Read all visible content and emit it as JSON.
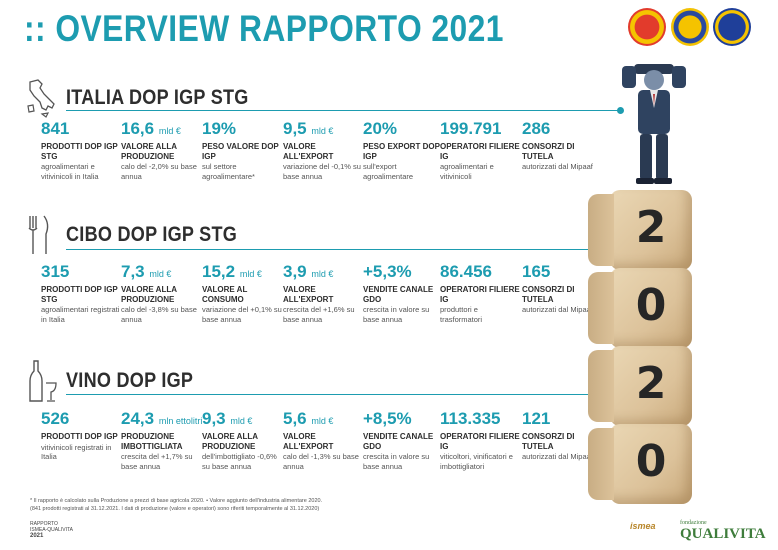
{
  "title": ":: OVERVIEW RAPPORTO 2021",
  "sections": [
    {
      "title": "ITALIA DOP IGP STG",
      "icon": "italy-map-icon",
      "stats": [
        {
          "value": "841",
          "unit": "",
          "label": "PRODOTTI DOP IGP STG",
          "desc": "agroalimentari e vitivinicoli in Italia"
        },
        {
          "value": "16,6",
          "unit": "mld €",
          "label": "VALORE ALLA PRODUZIONE",
          "desc": "calo del -2,0% su base annua"
        },
        {
          "value": "19%",
          "unit": "",
          "label": "PESO VALORE DOP IGP",
          "desc": "sul settore agroalimentare*"
        },
        {
          "value": "9,5",
          "unit": "mld €",
          "label": "VALORE ALL'EXPORT",
          "desc": "variazione del -0,1% su base annua"
        },
        {
          "value": "20%",
          "unit": "",
          "label": "PESO EXPORT DOP IGP",
          "desc": "sull'export agroalimentare"
        },
        {
          "value": "199.791",
          "unit": "",
          "label": "OPERATORI FILIERE IG",
          "desc": "agroalimentari e vitivinicoli"
        },
        {
          "value": "286",
          "unit": "",
          "label": "CONSORZI DI TUTELA",
          "desc": "autorizzati dal Mipaaf"
        }
      ]
    },
    {
      "title": "CIBO DOP IGP STG",
      "icon": "cutlery-icon",
      "stats": [
        {
          "value": "315",
          "unit": "",
          "label": "PRODOTTI DOP IGP STG",
          "desc": "agroalimentari registrati in Italia"
        },
        {
          "value": "7,3",
          "unit": "mld €",
          "label": "VALORE ALLA PRODUZIONE",
          "desc": "calo del -3,8% su base annua"
        },
        {
          "value": "15,2",
          "unit": "mld €",
          "label": "VALORE AL CONSUMO",
          "desc": "variazione del +0,1% su base annua"
        },
        {
          "value": "3,9",
          "unit": "mld €",
          "label": "VALORE ALL'EXPORT",
          "desc": "crescita del +1,6% su base annua"
        },
        {
          "value": "+5,3%",
          "unit": "",
          "label": "VENDITE CANALE GDO",
          "desc": "crescita in valore su base annua"
        },
        {
          "value": "86.456",
          "unit": "",
          "label": "OPERATORI FILIERE IG",
          "desc": "produttori e trasformatori"
        },
        {
          "value": "165",
          "unit": "",
          "label": "CONSORZI DI TUTELA",
          "desc": "autorizzati dal Mipaaf"
        }
      ]
    },
    {
      "title": "VINO DOP IGP",
      "icon": "wine-bottle-icon",
      "stats": [
        {
          "value": "526",
          "unit": "",
          "label": "PRODOTTI DOP IGP",
          "desc": "vitivinicoli registrati in Italia"
        },
        {
          "value": "24,3",
          "unit": "mln ettolitri",
          "label": "PRODUZIONE IMBOTTIGLIATA",
          "desc": "crescita del +1,7% su base annua"
        },
        {
          "value": "9,3",
          "unit": "mld €",
          "label": "VALORE ALLA PRODUZIONE",
          "desc": "dell'imbottigliato -0,6% su base annua"
        },
        {
          "value": "5,6",
          "unit": "mld €",
          "label": "VALORE ALL'EXPORT",
          "desc": "calo del -1,3% su base annua"
        },
        {
          "value": "+8,5%",
          "unit": "",
          "label": "VENDITE CANALE GDO",
          "desc": "crescita in valore su base annua"
        },
        {
          "value": "113.335",
          "unit": "",
          "label": "OPERATORI FILIERE IG",
          "desc": "viticoltori, vinificatori e imbottigliatori"
        },
        {
          "value": "121",
          "unit": "",
          "label": "CONSORZI DI TUTELA",
          "desc": "autorizzati dal Mipaaf"
        }
      ]
    }
  ],
  "dice": [
    "2",
    "0",
    "2",
    "0"
  ],
  "footnote": {
    "line1": "* Il rapporto è calcolato sulla Produzione a prezzi di base agricola 2020. • Valore aggiunto dell'industria alimentare 2020.",
    "line2": "(841 prodotti registrati al 31.12.2021. I dati di produzione (valore e operatori) sono riferiti temporalmente al 31.12.2020)"
  },
  "report_logo": {
    "line1": "RAPPORTO",
    "line2": "ISMEA-QUALIVITA",
    "line3": "2021"
  },
  "partner_logos": {
    "ismea": "ismea",
    "qualivita_top": "fondazione",
    "qualivita": "QUALIVITA"
  },
  "colors": {
    "accent": "#1d9cb0",
    "text": "#2e2e2e"
  }
}
